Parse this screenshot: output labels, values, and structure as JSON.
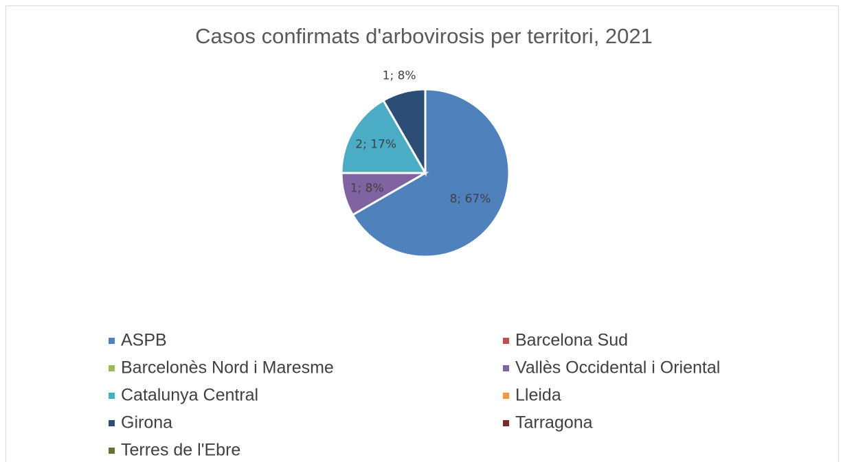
{
  "chart_data": {
    "type": "pie",
    "title": "Casos confirmats d'arbovirosis per territori, 2021",
    "categories": [
      "ASPB",
      "Barcelona Sud",
      "Barcelonès Nord i Maresme",
      "Vallès Occidental i Oriental",
      "Catalunya Central",
      "Lleida",
      "Girona",
      "Tarragona",
      "Terres de l'Ebre"
    ],
    "values": [
      8,
      0,
      0,
      1,
      2,
      0,
      1,
      0,
      0
    ],
    "value_labels": [
      "8; 67%",
      null,
      null,
      "1; 8%",
      "2; 17%",
      null,
      "1; 8%",
      null,
      null
    ],
    "colors": [
      "#4f81bd",
      "#c0504d",
      "#9bbb59",
      "#8064a2",
      "#4bacc6",
      "#f79646",
      "#2c4d75",
      "#772c2a",
      "#5f7530"
    ],
    "legend": "bottom"
  }
}
